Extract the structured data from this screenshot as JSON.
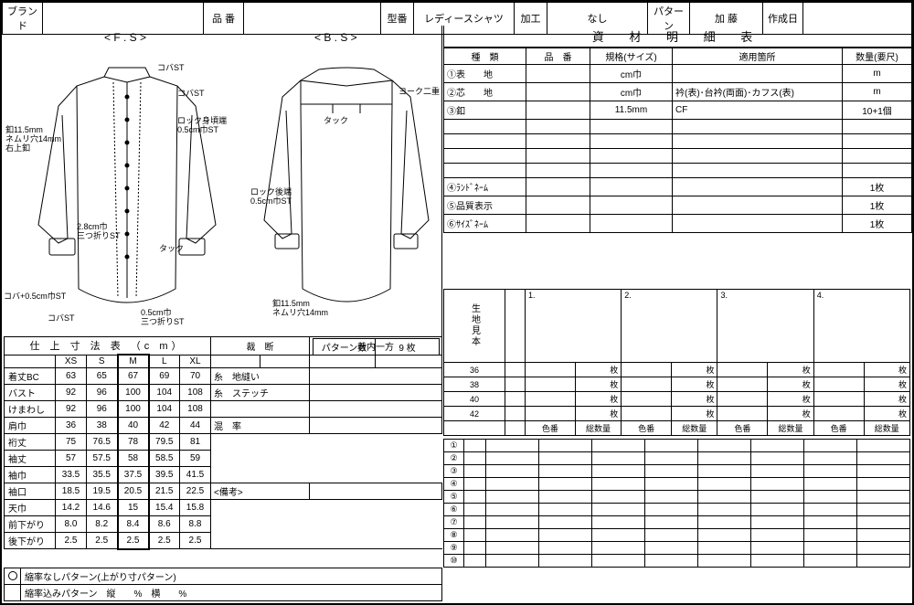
{
  "header": {
    "brand_label": "ブランド",
    "brand_val": "",
    "code_label": "品 番",
    "code_val": "",
    "model_label": "型番",
    "model_val": "レディースシャツ",
    "process_label": "加工",
    "process_val": "なし",
    "pattern_label": "パターン",
    "pattern_val": "加 藤",
    "date_label": "作成日",
    "date_val": ""
  },
  "diagram": {
    "fs_title": "< F . S >",
    "bs_title": "< B . S >",
    "annots_fs": {
      "a1": "コバST",
      "a2": "コバST",
      "a3": "ロック身頃端\n0.5cm巾ST",
      "a4": "釦11.5mm\nネムリ穴14mm\n右上釦",
      "a5": "2.8cm巾\n三つ折りST",
      "a6": "タック",
      "a7": "コバ+0.5cm巾ST",
      "a8": "コバST",
      "a9": "0.5cm巾\n三つ折りST"
    },
    "annots_bs": {
      "b1": "ヨーク二重",
      "b2": "タック",
      "b3": "ロック後端\n0.5cm巾ST",
      "b4": "釦11.5mm\nネムリ穴14mm"
    }
  },
  "materials": {
    "title": "資 材 明 細 表",
    "cols": {
      "c1": "種　類",
      "c2": "品　番",
      "c3": "規格(サイズ)",
      "c4": "適用箇所",
      "c5": "数量(要尺)"
    },
    "rows": [
      {
        "type": "①表　　地",
        "spec": "cm巾",
        "use": "",
        "qty": "m"
      },
      {
        "type": "②芯　　地",
        "spec": "cm巾",
        "use": "衿(表)･台衿(両面)･カフス(表)",
        "qty": "m"
      },
      {
        "type": "③釦",
        "spec": "11.5mm",
        "use": "CF",
        "qty": "10+1個"
      },
      {
        "type": "",
        "spec": "",
        "use": "",
        "qty": ""
      },
      {
        "type": "",
        "spec": "",
        "use": "",
        "qty": ""
      },
      {
        "type": "",
        "spec": "",
        "use": "",
        "qty": ""
      },
      {
        "type": "",
        "spec": "",
        "use": "",
        "qty": ""
      },
      {
        "type": "④ﾗﾝﾄﾞﾈｰﾑ",
        "spec": "",
        "use": "",
        "qty": "1枚"
      },
      {
        "type": "⑤品質表示",
        "spec": "",
        "use": "",
        "qty": "1枚"
      },
      {
        "type": "⑥ｻｲｽﾞﾈｰﾑ",
        "spec": "",
        "use": "",
        "qty": "1枚"
      }
    ]
  },
  "samples": {
    "side_label": "生地見本",
    "heads": [
      "1.",
      "2.",
      "3.",
      "4."
    ],
    "rows": [
      "36",
      "38",
      "40",
      "42"
    ],
    "unit": "枚",
    "sub_cols": [
      "色番",
      "総数量",
      "色番",
      "総数量",
      "色番",
      "総数量",
      "色番",
      "総数量"
    ],
    "nums": [
      "①",
      "②",
      "③",
      "④",
      "⑤",
      "⑥",
      "⑦",
      "⑧",
      "⑨",
      "⑩"
    ]
  },
  "patternInfo": {
    "pcount_label": "パターン数",
    "pcount_val": "9 枚",
    "cut_label": "裁　断",
    "cut_val": "着内一方",
    "thread1": "糸　地縫い",
    "thread2": "糸　ステッチ",
    "mix": "混　率",
    "note_label": "<備考>"
  },
  "sizeTable": {
    "title": "仕 上 寸 法 表 （c m）",
    "sizes": [
      "XS",
      "S",
      "M",
      "L",
      "XL"
    ],
    "bold_size_idx": 2,
    "rows": [
      {
        "label": "着丈BC",
        "v": [
          "63",
          "65",
          "67",
          "69",
          "70"
        ]
      },
      {
        "label": "バスト",
        "v": [
          "92",
          "96",
          "100",
          "104",
          "108"
        ]
      },
      {
        "label": "けまわし",
        "v": [
          "92",
          "96",
          "100",
          "104",
          "108"
        ]
      },
      {
        "label": "肩巾",
        "v": [
          "36",
          "38",
          "40",
          "42",
          "44"
        ]
      },
      {
        "label": "裄丈",
        "v": [
          "75",
          "76.5",
          "78",
          "79.5",
          "81"
        ]
      },
      {
        "label": "袖丈",
        "v": [
          "57",
          "57.5",
          "58",
          "58.5",
          "59"
        ]
      },
      {
        "label": "袖巾",
        "v": [
          "33.5",
          "35.5",
          "37.5",
          "39.5",
          "41.5"
        ]
      },
      {
        "label": "袖口",
        "v": [
          "18.5",
          "19.5",
          "20.5",
          "21.5",
          "22.5"
        ]
      },
      {
        "label": "天巾",
        "v": [
          "14.2",
          "14.6",
          "15",
          "15.4",
          "15.8"
        ]
      },
      {
        "label": "前下がり",
        "v": [
          "8.0",
          "8.2",
          "8.4",
          "8.6",
          "8.8"
        ]
      },
      {
        "label": "後下がり",
        "v": [
          "2.5",
          "2.5",
          "2.5",
          "2.5",
          "2.5"
        ]
      }
    ]
  },
  "footer": {
    "line1": "縮率なしパターン(上がり寸パターン)",
    "line2": "縮率込みパターン　縦　　%　横　　%"
  }
}
